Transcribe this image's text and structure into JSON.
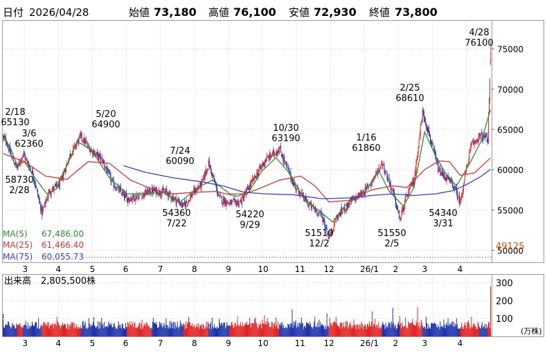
{
  "header": {
    "date_label": "日付",
    "date": "2026/04/28",
    "open_label": "始値",
    "open": "73,180",
    "high_label": "高値",
    "high": "76,100",
    "low_label": "安値",
    "low": "72,930",
    "close_label": "終値",
    "close": "73,800"
  },
  "colors": {
    "up": "#e02020",
    "down": "#1a2fa8",
    "high_text": "#e00000",
    "low_text": "#0a8a0a",
    "ma5": "#2e8b2e",
    "ma25": "#e03030",
    "ma75": "#3a3adf",
    "ref_line": "#e05000"
  },
  "ma_legend": [
    {
      "label": "MA(5)",
      "value": "67,486.00",
      "color": "#2e8b2e"
    },
    {
      "label": "MA(25)",
      "value": "61,466.40",
      "color": "#e03030"
    },
    {
      "label": "MA(75)",
      "value": "60,055.73",
      "color": "#3a3adf"
    }
  ],
  "volume_label": "出来高",
  "volume_value": "2,805,500株",
  "volume_unit": "(万株)",
  "ref_value": "49125",
  "chart_data": [
    {
      "type": "candlestick",
      "ylim": [
        48500,
        78500
      ],
      "y_ticks": [
        "75000",
        "70000",
        "65000",
        "60000",
        "55000",
        "50000"
      ],
      "x_ticks": [
        "3",
        "4",
        "5",
        "6",
        "7",
        "8",
        "9",
        "10",
        "11",
        "12",
        "26/1",
        "2",
        "3",
        "4"
      ],
      "reference_line": 49125,
      "annotations": [
        {
          "date": "2/18",
          "value": "65130"
        },
        {
          "date": "3/6",
          "value": "62360"
        },
        {
          "date": "2/28",
          "value": "58730"
        },
        {
          "date": "5/20",
          "value": "64900"
        },
        {
          "date": "7/24",
          "value": "60090"
        },
        {
          "date": "7/22",
          "value": "54360"
        },
        {
          "date": "9/29",
          "value": "54220"
        },
        {
          "date": "10/30",
          "value": "63190"
        },
        {
          "date": "12/2",
          "value": "51510"
        },
        {
          "date": "1/16",
          "value": "61860"
        },
        {
          "date": "2/5",
          "value": "51550"
        },
        {
          "date": "2/25",
          "value": "68610"
        },
        {
          "date": "3/31",
          "value": "54340"
        },
        {
          "date": "4/28",
          "value": "76100"
        }
      ],
      "close_anchors": [
        [
          0,
          64000
        ],
        [
          5,
          63500
        ],
        [
          12,
          61500
        ],
        [
          20,
          60200
        ],
        [
          28,
          62000
        ],
        [
          42,
          59500
        ],
        [
          55,
          54600
        ],
        [
          65,
          57300
        ],
        [
          80,
          58200
        ],
        [
          95,
          62000
        ],
        [
          110,
          64200
        ],
        [
          120,
          62800
        ],
        [
          140,
          61200
        ],
        [
          155,
          58200
        ],
        [
          175,
          56400
        ],
        [
          190,
          56700
        ],
        [
          210,
          57400
        ],
        [
          230,
          57200
        ],
        [
          255,
          55500
        ],
        [
          270,
          57300
        ],
        [
          280,
          58200
        ],
        [
          290,
          60800
        ],
        [
          305,
          56500
        ],
        [
          320,
          55800
        ],
        [
          335,
          56000
        ],
        [
          355,
          59000
        ],
        [
          370,
          61200
        ],
        [
          390,
          62600
        ],
        [
          410,
          58200
        ],
        [
          430,
          55800
        ],
        [
          450,
          54300
        ],
        [
          460,
          51500
        ],
        [
          470,
          54000
        ],
        [
          490,
          56000
        ],
        [
          510,
          57300
        ],
        [
          525,
          59200
        ],
        [
          535,
          60900
        ],
        [
          550,
          57200
        ],
        [
          560,
          53800
        ],
        [
          570,
          56800
        ],
        [
          580,
          58800
        ],
        [
          592,
          67200
        ],
        [
          600,
          64800
        ],
        [
          615,
          59800
        ],
        [
          625,
          59000
        ],
        [
          635,
          58100
        ],
        [
          645,
          56000
        ],
        [
          660,
          62800
        ],
        [
          672,
          64200
        ],
        [
          684,
          63800
        ],
        [
          688,
          73800
        ]
      ],
      "moving_averages": [
        {
          "name": "MA(5)",
          "points": [
            [
              0,
              64000
            ],
            [
              10,
              62800
            ],
            [
              20,
              60500
            ],
            [
              30,
              61000
            ],
            [
              45,
              59000
            ],
            [
              62,
              57000
            ],
            [
              75,
              57600
            ],
            [
              90,
              60500
            ],
            [
              105,
              63500
            ],
            [
              125,
              62400
            ],
            [
              150,
              59000
            ],
            [
              175,
              57000
            ],
            [
              200,
              57000
            ],
            [
              225,
              57200
            ],
            [
              250,
              56000
            ],
            [
              275,
              57800
            ],
            [
              295,
              58700
            ],
            [
              320,
              57000
            ],
            [
              345,
              57000
            ],
            [
              365,
              59800
            ],
            [
              385,
              61500
            ],
            [
              405,
              59500
            ],
            [
              425,
              56300
            ],
            [
              445,
              55000
            ],
            [
              465,
              53500
            ],
            [
              485,
              55800
            ],
            [
              510,
              57100
            ],
            [
              530,
              59900
            ],
            [
              545,
              57300
            ],
            [
              565,
              55500
            ],
            [
              580,
              57800
            ],
            [
              595,
              64700
            ],
            [
              610,
              61800
            ],
            [
              625,
              59500
            ],
            [
              640,
              58000
            ],
            [
              660,
              61000
            ],
            [
              675,
              63600
            ],
            [
              688,
              67486
            ]
          ]
        },
        {
          "name": "MA(25)",
          "points": [
            [
              0,
              62000
            ],
            [
              30,
              61000
            ],
            [
              60,
              59200
            ],
            [
              90,
              58800
            ],
            [
              120,
              61000
            ],
            [
              150,
              60800
            ],
            [
              180,
              58700
            ],
            [
              210,
              57600
            ],
            [
              240,
              57000
            ],
            [
              270,
              57200
            ],
            [
              300,
              57300
            ],
            [
              330,
              56700
            ],
            [
              360,
              57600
            ],
            [
              390,
              58700
            ],
            [
              420,
              59200
            ],
            [
              440,
              58000
            ],
            [
              460,
              56000
            ],
            [
              490,
              56200
            ],
            [
              520,
              57500
            ],
            [
              550,
              58000
            ],
            [
              570,
              57800
            ],
            [
              595,
              60000
            ],
            [
              615,
              61100
            ],
            [
              630,
              61000
            ],
            [
              645,
              59300
            ],
            [
              665,
              59600
            ],
            [
              688,
              61466
            ]
          ]
        },
        {
          "name": "MA(75)",
          "points": [
            [
              170,
              60500
            ],
            [
              200,
              59700
            ],
            [
              240,
              59000
            ],
            [
              280,
              58500
            ],
            [
              310,
              58000
            ],
            [
              340,
              57200
            ],
            [
              370,
              57000
            ],
            [
              410,
              56900
            ],
            [
              450,
              56400
            ],
            [
              490,
              56500
            ],
            [
              520,
              56800
            ],
            [
              550,
              57000
            ],
            [
              580,
              56800
            ],
            [
              610,
              57000
            ],
            [
              635,
              57400
            ],
            [
              655,
              58200
            ],
            [
              675,
              59200
            ],
            [
              688,
              60056
            ]
          ]
        }
      ]
    },
    {
      "type": "bar",
      "title": "出来高",
      "ylim": [
        0,
        345
      ],
      "y_ticks": [
        "300",
        "200",
        "100"
      ],
      "x_ticks": [
        "3",
        "4",
        "5",
        "6",
        "7",
        "8",
        "9",
        "10",
        "11",
        "12",
        "26/1",
        "2",
        "3",
        "4"
      ],
      "spikes": [
        [
          0,
          125
        ],
        [
          50,
          105
        ],
        [
          128,
          108
        ],
        [
          230,
          100
        ],
        [
          262,
          110
        ],
        [
          295,
          105
        ],
        [
          331,
          112
        ],
        [
          369,
          118
        ],
        [
          408,
          152
        ],
        [
          440,
          110
        ],
        [
          457,
          130
        ],
        [
          495,
          95
        ],
        [
          521,
          140
        ],
        [
          550,
          160
        ],
        [
          560,
          115
        ],
        [
          585,
          165
        ],
        [
          597,
          110
        ],
        [
          640,
          100
        ],
        [
          688,
          280.55
        ]
      ]
    }
  ]
}
